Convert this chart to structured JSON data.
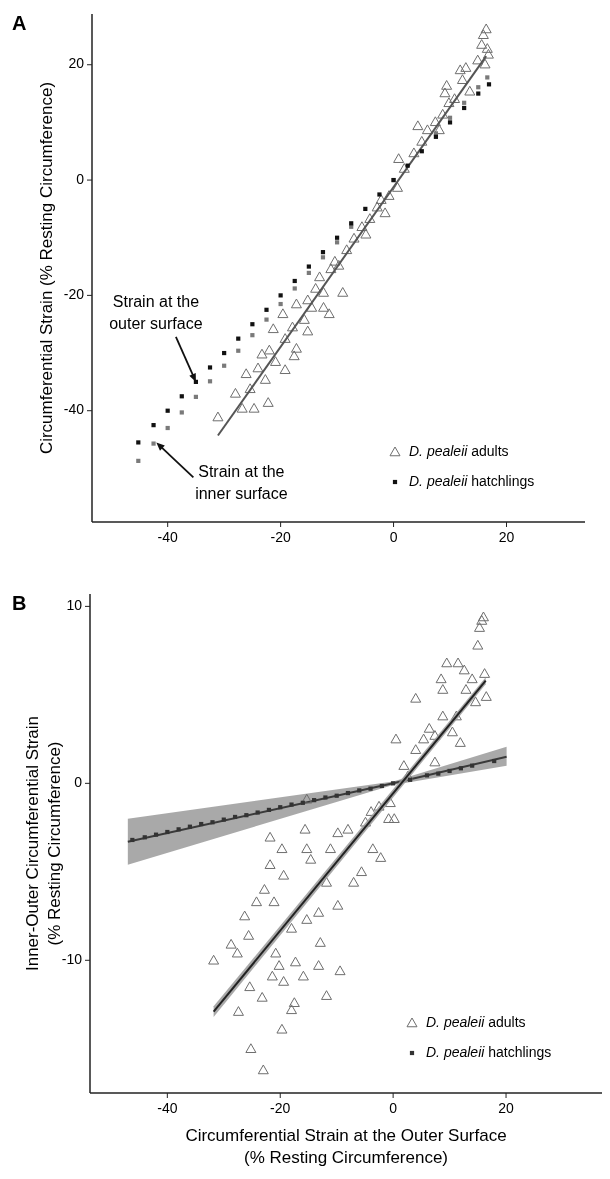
{
  "chart_data": [
    {
      "type": "scatter",
      "title": "A",
      "ylabel": "Circumferential Strain (% Resting Circumference)",
      "xlim": [
        -53.4,
        33.9
      ],
      "ylim": [
        -59.3,
        28.8
      ],
      "xticks": [
        -40,
        -20,
        0,
        20
      ],
      "yticks": [
        -40,
        -20,
        0,
        20
      ],
      "legend": "bottom right",
      "grid": false,
      "annotations": [
        {
          "text": "Strain at the outer surface",
          "x": -35,
          "y": -35
        },
        {
          "text": "Strain at the inner surface",
          "x": -42,
          "y": -45.5
        }
      ],
      "series": [
        {
          "name": "D. pealeii adults",
          "type": "scatter",
          "marker": "triangle",
          "color": "#6e6e6e",
          "x": [
            -31.1,
            -28,
            -26.8,
            -24.7,
            -22.2,
            -22.7,
            -24,
            -26.1,
            -25.4,
            -19.2,
            -20.9,
            -22,
            -23.3,
            -17.2,
            -17.6,
            -19.2,
            -21.3,
            -19.6,
            -17.9,
            -15.2,
            -15.8,
            -17.2,
            -15.2,
            -13.8,
            -13.1,
            -11.4,
            -12.4,
            -14.5,
            -12.4,
            -9,
            -11.1,
            -9.7,
            -8.3,
            -10.4,
            -7,
            -4.9,
            -5.6,
            -4.2,
            -2.9,
            -1.5,
            -2.2,
            -0.8,
            0.7,
            0.9,
            1.9,
            3.6,
            4.3,
            5,
            6,
            7.4,
            8.1,
            8.7,
            9.4,
            9.1,
            9.8,
            10.8,
            11.8,
            12.2,
            12.8,
            13.5,
            14.9,
            15.6,
            15.9,
            16.4,
            16.6,
            16.8,
            16.2
          ],
          "values": [
            -41.1,
            -37,
            -39.6,
            -39.6,
            -38.6,
            -34.6,
            -32.6,
            -33.6,
            -36.2,
            -32.9,
            -31.5,
            -29.5,
            -30.2,
            -29.2,
            -30.5,
            -27.5,
            -25.8,
            -23.2,
            -25.5,
            -26.2,
            -24.2,
            -21.5,
            -20.8,
            -18.8,
            -16.8,
            -23.2,
            -22.1,
            -22.1,
            -19.5,
            -19.5,
            -15.4,
            -14.8,
            -12.1,
            -14.1,
            -10.1,
            -9.4,
            -8.1,
            -6.7,
            -4.7,
            -5.7,
            -3.4,
            -2.7,
            -1.3,
            3.7,
            2,
            4.7,
            9.4,
            6.7,
            8.7,
            10.1,
            8.7,
            11.4,
            16.4,
            15.1,
            13.4,
            14.1,
            19.1,
            17.4,
            19.5,
            15.4,
            20.8,
            23.5,
            25.2,
            26.2,
            22.8,
            21.8,
            20.1
          ]
        },
        {
          "type": "line",
          "marker": "none",
          "color": "#555555",
          "x": [
            -31.1,
            16.4
          ],
          "values": [
            -44.3,
            21.5
          ]
        },
        {
          "type": "scatter",
          "marker": "square",
          "color": "#7a7a7a",
          "x": [
            -45.2,
            -42.5,
            -40,
            -37.5,
            -35,
            -32.5,
            -30,
            -27.5,
            -25,
            -22.5,
            -20,
            -17.5,
            -15,
            -12.5,
            -10,
            -7.5,
            0,
            7.5,
            10,
            12.5,
            15,
            16.6
          ],
          "values": [
            -48.7,
            -45.7,
            -43,
            -40.3,
            -37.6,
            -34.9,
            -32.2,
            -29.6,
            -26.9,
            -24.2,
            -21.5,
            -18.8,
            -16.1,
            -13.4,
            -10.8,
            -8.1,
            0,
            8.1,
            10.8,
            13.4,
            16.1,
            17.8
          ]
        },
        {
          "name": "D. pealeii hatchlings",
          "type": "scatter",
          "marker": "square",
          "color": "#111111",
          "x": [
            -45.2,
            -42.5,
            -40,
            -37.5,
            -35,
            -32.5,
            -30,
            -27.5,
            -25,
            -22.5,
            -20,
            -17.5,
            -15,
            -12.5,
            -10,
            -7.5,
            -5,
            -2.5,
            0,
            2.5,
            5,
            7.5,
            10,
            12.5,
            15,
            16.9
          ],
          "values": [
            -45.5,
            -42.5,
            -40,
            -37.5,
            -35,
            -32.5,
            -30,
            -27.5,
            -25,
            -22.5,
            -20,
            -17.5,
            -15,
            -12.5,
            -10,
            -7.5,
            -5,
            -2.5,
            0,
            2.5,
            5,
            7.5,
            10,
            12.5,
            15,
            16.6
          ]
        }
      ]
    },
    {
      "type": "scatter",
      "title": "B",
      "xlabel": "Circumferential Strain at the Outer Surface\n(% Resting Circumference)",
      "ylabel": "Inner-Outer Circumferential Strain\n(% Resting Circumference)",
      "xlim": [
        -53.7,
        37
      ],
      "ylim": [
        -17.5,
        10.7
      ],
      "xticks": [
        -40,
        -20,
        0,
        20
      ],
      "yticks": [
        -10,
        0,
        10
      ],
      "legend": "bottom right",
      "grid": false,
      "series": [
        {
          "type": "line",
          "marker": "none",
          "color": "#3a3a3a",
          "x": [
            -47,
            0,
            20.1
          ],
          "values": [
            -3.3,
            0,
            1.5
          ],
          "lower": [
            -4.6,
            -0.1,
            1
          ],
          "upper": [
            -2,
            0.1,
            2.07
          ]
        },
        {
          "name": "D. pealeii adults",
          "type": "scatter",
          "marker": "triangle",
          "color": "#6e6e6e",
          "x": [
            -31.8,
            -28.7,
            -27.6,
            -27.4,
            -25.4,
            -25.2,
            -23,
            -23.2,
            -21.8,
            -21.8,
            -19.7,
            -19.4,
            -21.4,
            -20.2,
            -20.8,
            -25.6,
            -26.3,
            -24.2,
            -22.8,
            -21.1,
            -19.7,
            -19.4,
            -18,
            -17.3,
            -17.5,
            -18,
            -15.9,
            -15.6,
            -15.3,
            -14.6,
            -15.3,
            -13.2,
            -12.9,
            -11.8,
            -13.2,
            -11.8,
            -11.1,
            -9.8,
            -9.8,
            -9.4,
            -8,
            -7,
            -5.6,
            -4.9,
            -3.6,
            -2.2,
            -3.9,
            -2.5,
            -0.5,
            0.2,
            -0.8,
            -15.3,
            0.5,
            1.9,
            2.6,
            4,
            4,
            5.4,
            6.4,
            7.4,
            7.4,
            8.8,
            8.5,
            8.8,
            9.5,
            10.5,
            11.2,
            11.5,
            11.9,
            12.6,
            12.9,
            14.6,
            15,
            15.3,
            15.7,
            16,
            16.2,
            16.5,
            14
          ],
          "values": [
            -10,
            -9.1,
            -9.6,
            -12.9,
            -11.5,
            -15,
            -16.2,
            -12.1,
            -3.05,
            -4.6,
            -13.9,
            -11.2,
            -10.9,
            -10.3,
            -9.6,
            -8.6,
            -7.5,
            -6.7,
            -6,
            -6.7,
            -3.7,
            -5.2,
            -8.2,
            -10.1,
            -12.4,
            -12.8,
            -10.9,
            -2.6,
            -3.7,
            -4.3,
            -7.7,
            -10.3,
            -9,
            -12,
            -7.3,
            -5.6,
            -3.7,
            -2.8,
            -6.9,
            -10.6,
            -2.6,
            -5.6,
            -5,
            -2.2,
            -3.7,
            -4.2,
            -1.6,
            -1.3,
            -1.1,
            -2,
            -2,
            -0.9,
            2.5,
            1,
            0.4,
            1.9,
            4.8,
            2.5,
            3.1,
            1.2,
            2.7,
            3.8,
            5.9,
            5.3,
            6.8,
            2.9,
            3.8,
            6.8,
            2.3,
            6.4,
            5.3,
            4.6,
            7.8,
            8.8,
            9.2,
            9.4,
            6.2,
            4.9,
            5.9
          ]
        },
        {
          "type": "line",
          "marker": "none",
          "color": "#222222",
          "x": [
            -31.8,
            16.4
          ],
          "values": [
            -12.9,
            5.8
          ],
          "lower": [
            -13.2,
            5.6
          ],
          "upper": [
            -12.6,
            6
          ]
        },
        {
          "name": "D. pealeii hatchlings",
          "type": "scatter",
          "marker": "square",
          "color": "#333333",
          "x": [
            -46.2,
            -44,
            -42,
            -40,
            -38,
            -36,
            -34,
            -32,
            -30,
            -28,
            -26,
            -24,
            -22,
            -20,
            -18,
            -16,
            -14,
            -12,
            -10,
            -8,
            -6,
            -4,
            -2,
            0,
            3,
            6,
            8,
            10,
            12,
            14,
            17.9
          ],
          "values": [
            -3.2,
            -3.05,
            -2.9,
            -2.75,
            -2.6,
            -2.45,
            -2.3,
            -2.2,
            -2.05,
            -1.9,
            -1.8,
            -1.65,
            -1.5,
            -1.35,
            -1.2,
            -1.1,
            -0.95,
            -0.8,
            -0.7,
            -0.55,
            -0.4,
            -0.3,
            -0.15,
            0,
            0.2,
            0.45,
            0.55,
            0.7,
            0.85,
            1,
            1.26
          ]
        }
      ]
    }
  ]
}
